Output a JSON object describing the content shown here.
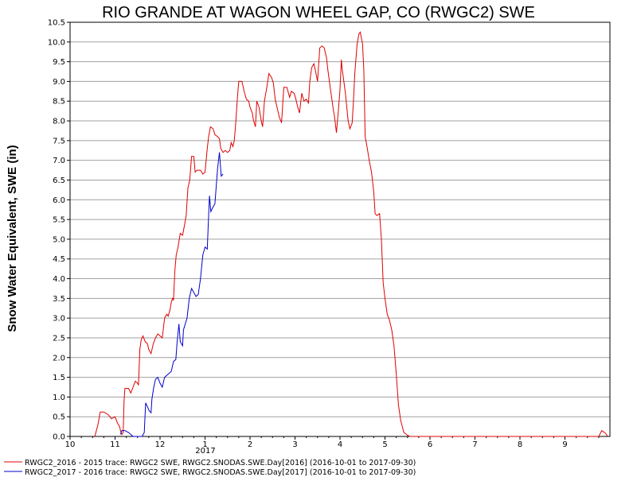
{
  "chart_data": {
    "type": "line",
    "title": "RIO GRANDE AT WAGON WHEEL GAP, CO (RWGC2) SWE",
    "xlabel": "",
    "ylabel": "Snow Water Equivalent, SWE (in)",
    "x_axis": {
      "range_months": [
        0,
        12
      ],
      "tick_labels": [
        "10",
        "11",
        "12",
        "1",
        "2",
        "3",
        "4",
        "5",
        "6",
        "7",
        "8",
        "9"
      ],
      "year_label": "2017"
    },
    "y_axis": {
      "ylim": [
        0.0,
        10.5
      ],
      "tick_labels": [
        "0.0",
        "0.5",
        "1.0",
        "1.5",
        "2.0",
        "2.5",
        "3.0",
        "3.5",
        "4.0",
        "4.5",
        "5.0",
        "5.5",
        "6.0",
        "6.5",
        "7.0",
        "7.5",
        "8.0",
        "8.5",
        "9.0",
        "9.5",
        "10.0",
        "10.5"
      ]
    },
    "grid": "horizontal",
    "legend_placement": "bottom",
    "series": [
      {
        "name": "RWGC2_2016 - 2015 trace: RWGC2 SWE, RWGC2.SNODAS.SWE.Day[2016] (2016-10-01 to 2017-09-30)",
        "color": "#e00000",
        "points": [
          [
            0.55,
            0
          ],
          [
            0.62,
            0.3
          ],
          [
            0.67,
            0.62
          ],
          [
            0.75,
            0.62
          ],
          [
            0.85,
            0.55
          ],
          [
            0.92,
            0.45
          ],
          [
            1.0,
            0.5
          ],
          [
            1.05,
            0.35
          ],
          [
            1.1,
            0.25
          ],
          [
            1.12,
            0.15
          ],
          [
            1.15,
            0.05
          ],
          [
            1.18,
            0.1
          ],
          [
            1.2,
            0.9
          ],
          [
            1.22,
            1.22
          ],
          [
            1.3,
            1.22
          ],
          [
            1.35,
            1.1
          ],
          [
            1.4,
            1.25
          ],
          [
            1.45,
            1.4
          ],
          [
            1.5,
            1.35
          ],
          [
            1.52,
            1.3
          ],
          [
            1.55,
            2.2
          ],
          [
            1.58,
            2.45
          ],
          [
            1.62,
            2.55
          ],
          [
            1.67,
            2.4
          ],
          [
            1.72,
            2.35
          ],
          [
            1.75,
            2.2
          ],
          [
            1.8,
            2.1
          ],
          [
            1.85,
            2.35
          ],
          [
            1.9,
            2.5
          ],
          [
            1.95,
            2.6
          ],
          [
            2.0,
            2.55
          ],
          [
            2.05,
            2.5
          ],
          [
            2.1,
            3.0
          ],
          [
            2.15,
            3.1
          ],
          [
            2.18,
            3.05
          ],
          [
            2.22,
            3.2
          ],
          [
            2.25,
            3.4
          ],
          [
            2.28,
            3.5
          ],
          [
            2.3,
            3.45
          ],
          [
            2.33,
            4.2
          ],
          [
            2.36,
            4.6
          ],
          [
            2.4,
            4.8
          ],
          [
            2.45,
            5.15
          ],
          [
            2.5,
            5.1
          ],
          [
            2.55,
            5.4
          ],
          [
            2.58,
            5.6
          ],
          [
            2.62,
            6.3
          ],
          [
            2.66,
            6.5
          ],
          [
            2.7,
            7.1
          ],
          [
            2.75,
            7.1
          ],
          [
            2.78,
            6.7
          ],
          [
            2.82,
            6.75
          ],
          [
            2.9,
            6.75
          ],
          [
            2.95,
            6.65
          ],
          [
            3.0,
            6.7
          ],
          [
            3.05,
            7.3
          ],
          [
            3.08,
            7.6
          ],
          [
            3.12,
            7.85
          ],
          [
            3.18,
            7.8
          ],
          [
            3.22,
            7.65
          ],
          [
            3.28,
            7.6
          ],
          [
            3.32,
            7.55
          ],
          [
            3.35,
            7.3
          ],
          [
            3.4,
            7.2
          ],
          [
            3.45,
            7.25
          ],
          [
            3.5,
            7.2
          ],
          [
            3.55,
            7.25
          ],
          [
            3.58,
            7.45
          ],
          [
            3.62,
            7.35
          ],
          [
            3.65,
            7.5
          ],
          [
            3.68,
            7.9
          ],
          [
            3.72,
            8.6
          ],
          [
            3.75,
            9.0
          ],
          [
            3.82,
            9.0
          ],
          [
            3.88,
            8.7
          ],
          [
            3.92,
            8.55
          ],
          [
            3.97,
            8.5
          ],
          [
            4.0,
            8.35
          ],
          [
            4.05,
            8.2
          ],
          [
            4.08,
            8.0
          ],
          [
            4.12,
            7.85
          ],
          [
            4.15,
            8.5
          ],
          [
            4.2,
            8.35
          ],
          [
            4.25,
            8.0
          ],
          [
            4.28,
            7.85
          ],
          [
            4.32,
            8.5
          ],
          [
            4.38,
            8.9
          ],
          [
            4.42,
            9.2
          ],
          [
            4.48,
            9.1
          ],
          [
            4.52,
            8.95
          ],
          [
            4.56,
            8.55
          ],
          [
            4.6,
            8.35
          ],
          [
            4.65,
            8.1
          ],
          [
            4.7,
            7.95
          ],
          [
            4.75,
            8.85
          ],
          [
            4.82,
            8.85
          ],
          [
            4.88,
            8.6
          ],
          [
            4.92,
            8.75
          ],
          [
            4.98,
            8.7
          ],
          [
            5.02,
            8.55
          ],
          [
            5.05,
            8.4
          ],
          [
            5.1,
            8.2
          ],
          [
            5.15,
            8.7
          ],
          [
            5.2,
            8.5
          ],
          [
            5.25,
            8.55
          ],
          [
            5.3,
            8.45
          ],
          [
            5.33,
            9.0
          ],
          [
            5.37,
            9.35
          ],
          [
            5.42,
            9.45
          ],
          [
            5.45,
            9.3
          ],
          [
            5.5,
            9.0
          ],
          [
            5.55,
            9.85
          ],
          [
            5.6,
            9.9
          ],
          [
            5.65,
            9.85
          ],
          [
            5.7,
            9.6
          ],
          [
            5.73,
            9.3
          ],
          [
            5.77,
            8.95
          ],
          [
            5.82,
            8.55
          ],
          [
            5.85,
            8.3
          ],
          [
            5.88,
            8.1
          ],
          [
            5.92,
            7.7
          ],
          [
            5.96,
            8.2
          ],
          [
            6.0,
            8.8
          ],
          [
            6.03,
            9.55
          ],
          [
            6.05,
            9.3
          ],
          [
            6.08,
            9.05
          ],
          [
            6.12,
            8.7
          ],
          [
            6.15,
            8.35
          ],
          [
            6.18,
            8.0
          ],
          [
            6.22,
            7.8
          ],
          [
            6.27,
            7.95
          ],
          [
            6.3,
            8.5
          ],
          [
            6.33,
            9.2
          ],
          [
            6.38,
            9.95
          ],
          [
            6.42,
            10.2
          ],
          [
            6.45,
            10.25
          ],
          [
            6.5,
            9.95
          ],
          [
            6.53,
            9.3
          ],
          [
            6.56,
            7.6
          ],
          [
            6.6,
            7.35
          ],
          [
            6.65,
            7.0
          ],
          [
            6.7,
            6.7
          ],
          [
            6.75,
            6.2
          ],
          [
            6.78,
            5.65
          ],
          [
            6.82,
            5.6
          ],
          [
            6.88,
            5.65
          ],
          [
            6.92,
            5.0
          ],
          [
            6.96,
            3.9
          ],
          [
            7.0,
            3.5
          ],
          [
            7.05,
            3.1
          ],
          [
            7.1,
            2.95
          ],
          [
            7.15,
            2.7
          ],
          [
            7.2,
            2.3
          ],
          [
            7.25,
            1.6
          ],
          [
            7.3,
            0.8
          ],
          [
            7.35,
            0.4
          ],
          [
            7.42,
            0.1
          ],
          [
            7.5,
            0.03
          ],
          [
            7.55,
            0
          ],
          [
            11.75,
            0
          ],
          [
            11.82,
            0.15
          ],
          [
            11.9,
            0.08
          ],
          [
            11.95,
            0
          ]
        ]
      },
      {
        "name": "RWGC2_2017 - 2016 trace: RWGC2 SWE, RWGC2.SNODAS.SWE.Day[2017] (2016-10-01 to 2017-09-30)",
        "color": "#0000cc",
        "points": [
          [
            1.12,
            0.05
          ],
          [
            1.15,
            0.15
          ],
          [
            1.22,
            0.15
          ],
          [
            1.3,
            0.1
          ],
          [
            1.35,
            0.05
          ],
          [
            1.4,
            0.0
          ],
          [
            1.6,
            0.0
          ],
          [
            1.65,
            0.1
          ],
          [
            1.68,
            0.85
          ],
          [
            1.72,
            0.75
          ],
          [
            1.76,
            0.65
          ],
          [
            1.8,
            0.6
          ],
          [
            1.82,
            0.95
          ],
          [
            1.86,
            1.25
          ],
          [
            1.9,
            1.45
          ],
          [
            1.95,
            1.5
          ],
          [
            2.0,
            1.35
          ],
          [
            2.05,
            1.25
          ],
          [
            2.1,
            1.5
          ],
          [
            2.15,
            1.55
          ],
          [
            2.2,
            1.6
          ],
          [
            2.25,
            1.65
          ],
          [
            2.3,
            1.9
          ],
          [
            2.35,
            1.95
          ],
          [
            2.38,
            2.4
          ],
          [
            2.42,
            2.85
          ],
          [
            2.45,
            2.4
          ],
          [
            2.5,
            2.3
          ],
          [
            2.52,
            2.7
          ],
          [
            2.56,
            2.85
          ],
          [
            2.6,
            3.0
          ],
          [
            2.65,
            3.5
          ],
          [
            2.7,
            3.75
          ],
          [
            2.75,
            3.65
          ],
          [
            2.8,
            3.55
          ],
          [
            2.85,
            3.6
          ],
          [
            2.9,
            4.0
          ],
          [
            2.95,
            4.6
          ],
          [
            3.0,
            4.8
          ],
          [
            3.05,
            4.75
          ],
          [
            3.08,
            5.6
          ],
          [
            3.1,
            6.1
          ],
          [
            3.13,
            5.7
          ],
          [
            3.17,
            5.8
          ],
          [
            3.22,
            5.9
          ],
          [
            3.28,
            6.8
          ],
          [
            3.32,
            7.2
          ],
          [
            3.36,
            6.6
          ],
          [
            3.4,
            6.65
          ]
        ]
      }
    ]
  }
}
